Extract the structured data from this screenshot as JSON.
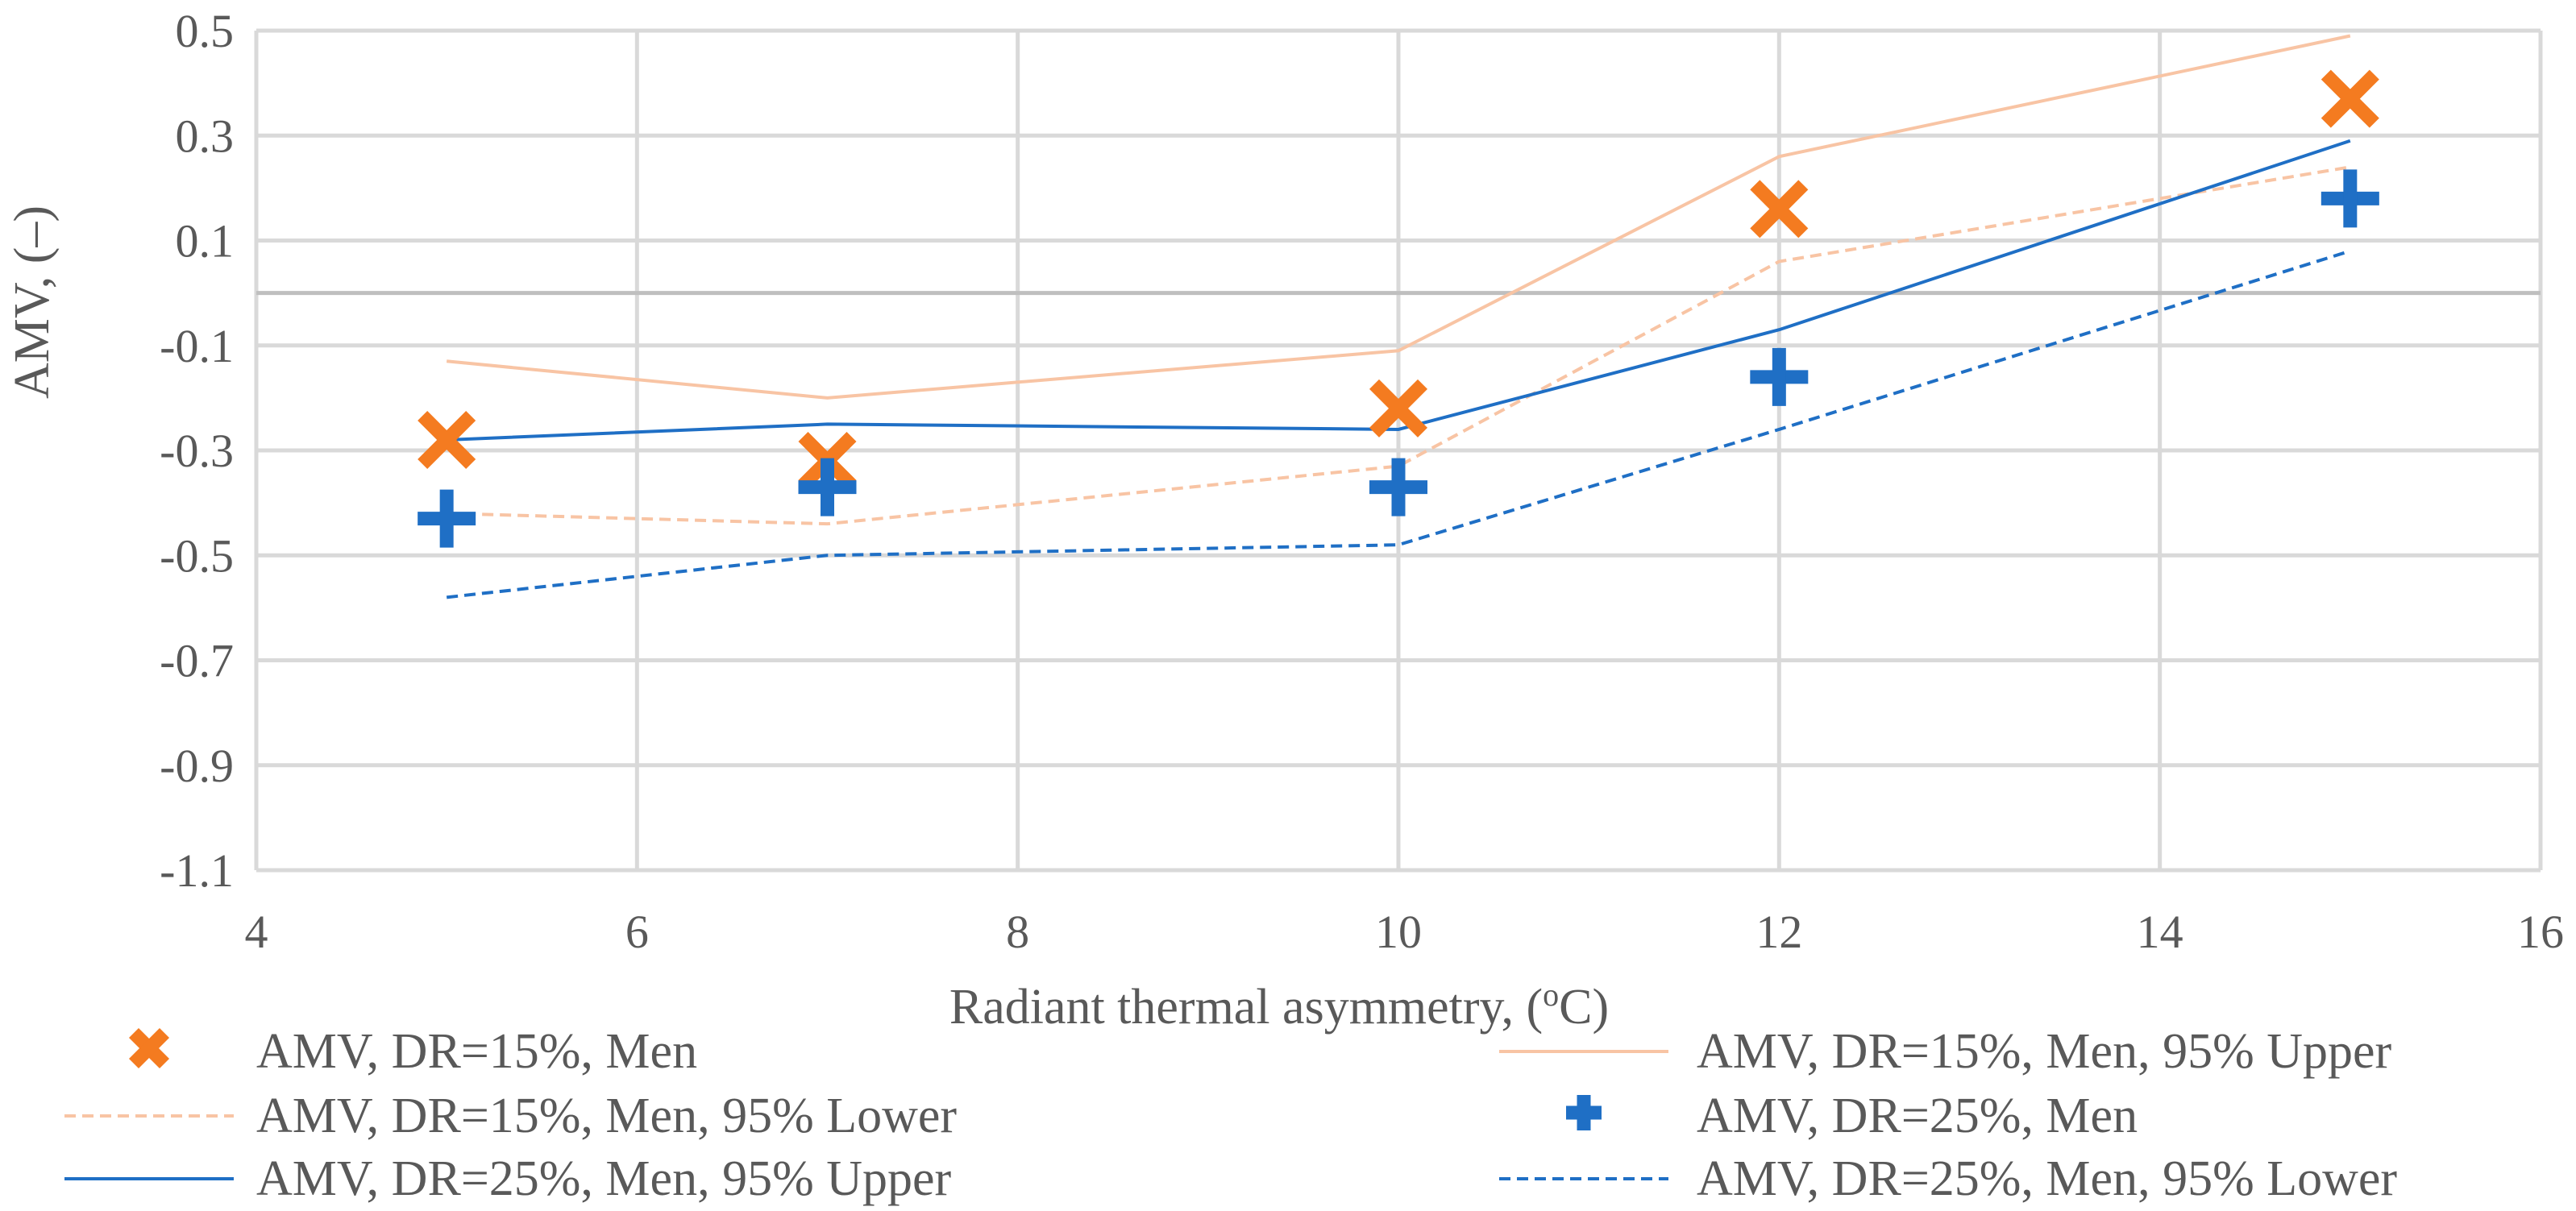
{
  "chart_data": {
    "type": "scatter",
    "title": "",
    "xlabel": "Radiant thermal asymmetry, (",
    "xlabel_superscript": "o",
    "xlabel_suffix": "C)",
    "ylabel": "AMV, (–)",
    "xlim": [
      4,
      16
    ],
    "ylim": [
      -1.1,
      0.5
    ],
    "xticks": [
      4,
      6,
      8,
      10,
      12,
      14,
      16
    ],
    "yticks": [
      -1.1,
      -0.9,
      -0.7,
      -0.5,
      -0.3,
      -0.1,
      0.1,
      0.3,
      0.5
    ],
    "ytick_labels": [
      "-1.1",
      "-0.9",
      "-0.7",
      "-0.5",
      "-0.3",
      "-0.1",
      "0.1",
      "0.3",
      "0.5"
    ],
    "xtick_labels": [
      "4",
      "6",
      "8",
      "10",
      "12",
      "14",
      "16"
    ],
    "grid": true,
    "zero_line": true,
    "legend_position": "bottom",
    "series": [
      {
        "name": "AMV, DR=15%, Men",
        "kind": "marker",
        "marker": "x",
        "color": "#F47B20",
        "x": [
          5,
          7,
          10,
          12,
          15
        ],
        "y": [
          -0.28,
          -0.32,
          -0.22,
          0.16,
          0.37
        ]
      },
      {
        "name": "AMV, DR=15%, Men, 95% Upper",
        "kind": "line",
        "dash": "solid",
        "color": "#F8C4A4",
        "x": [
          5,
          7,
          10,
          12,
          15
        ],
        "y": [
          -0.13,
          -0.2,
          -0.11,
          0.26,
          0.49
        ]
      },
      {
        "name": "AMV, DR=15%, Men, 95% Lower",
        "kind": "line",
        "dash": "dashed",
        "color": "#F8C4A4",
        "x": [
          5,
          7,
          10,
          12,
          15
        ],
        "y": [
          -0.42,
          -0.44,
          -0.33,
          0.06,
          0.24
        ]
      },
      {
        "name": "AMV, DR=25%, Men",
        "kind": "marker",
        "marker": "plus",
        "color": "#1F6FC5",
        "x": [
          5,
          7,
          10,
          12,
          15
        ],
        "y": [
          -0.43,
          -0.37,
          -0.37,
          -0.16,
          0.18
        ]
      },
      {
        "name": "AMV, DR=25%, Men, 95% Upper",
        "kind": "line",
        "dash": "solid",
        "color": "#1F6FC5",
        "x": [
          5,
          7,
          10,
          12,
          15
        ],
        "y": [
          -0.28,
          -0.25,
          -0.26,
          -0.07,
          0.29
        ]
      },
      {
        "name": "AMV, DR=25%, Men, 95% Lower",
        "kind": "line",
        "dash": "dashed",
        "color": "#1F6FC5",
        "x": [
          5,
          7,
          10,
          12,
          15
        ],
        "y": [
          -0.58,
          -0.5,
          -0.48,
          -0.26,
          0.08
        ]
      }
    ]
  }
}
